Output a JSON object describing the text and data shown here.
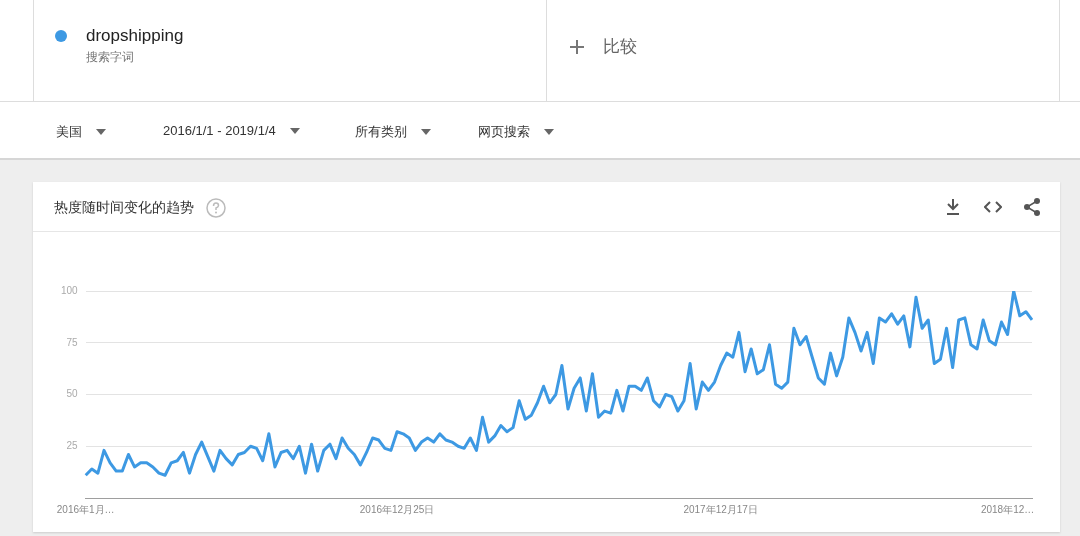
{
  "chart_data": {
    "type": "line",
    "title": "热度随时间变化的趋势",
    "annotations": [
      "搜索字词",
      "比较",
      "美国",
      "2016/1/1 - 2019/1/4",
      "所有类别",
      "网页搜索"
    ],
    "categories": [
      "2016年1月…",
      null,
      null,
      null,
      null,
      null,
      null,
      null,
      null,
      null,
      null,
      null,
      null,
      null,
      null,
      null,
      null,
      null,
      null,
      null,
      null,
      null,
      null,
      null,
      null,
      null,
      null,
      null,
      null,
      null,
      null,
      null,
      null,
      null,
      null,
      null,
      null,
      null,
      null,
      null,
      null,
      null,
      null,
      null,
      null,
      null,
      null,
      null,
      null,
      null,
      null,
      "2016年12月25日",
      null,
      null,
      null,
      null,
      null,
      null,
      null,
      null,
      null,
      null,
      null,
      null,
      null,
      null,
      null,
      null,
      null,
      null,
      null,
      null,
      null,
      null,
      null,
      null,
      null,
      null,
      null,
      null,
      null,
      null,
      null,
      null,
      null,
      null,
      null,
      null,
      null,
      null,
      null,
      null,
      null,
      null,
      null,
      null,
      null,
      null,
      null,
      null,
      null,
      null,
      null,
      null,
      "2017年12月17日",
      null,
      null,
      null,
      null,
      null,
      null,
      null,
      null,
      null,
      null,
      null,
      null,
      null,
      null,
      null,
      null,
      null,
      null,
      null,
      null,
      null,
      null,
      null,
      null,
      null,
      null,
      null,
      null,
      null,
      null,
      null,
      null,
      null,
      null,
      null,
      null,
      null,
      null,
      null,
      null,
      null,
      null,
      null,
      null,
      null,
      null,
      "2018年12…",
      null,
      null,
      null,
      null
    ],
    "series": [
      {
        "name": "dropshipping",
        "color": "#3d99e3",
        "values": [
          11,
          14,
          12,
          23,
          17,
          13,
          13,
          21,
          15,
          17,
          17,
          15,
          12,
          11,
          17,
          18,
          22,
          12,
          21,
          27,
          20,
          13,
          23,
          19,
          16,
          21,
          22,
          25,
          24,
          18,
          31,
          15,
          22,
          23,
          19,
          25,
          12,
          26,
          13,
          23,
          26,
          19,
          29,
          24,
          21,
          16,
          22,
          29,
          28,
          24,
          23,
          32,
          31,
          29,
          23,
          27,
          29,
          27,
          31,
          28,
          27,
          25,
          24,
          29,
          23,
          39,
          27,
          30,
          35,
          32,
          34,
          47,
          38,
          40,
          46,
          54,
          46,
          50,
          64,
          43,
          53,
          58,
          42,
          60,
          39,
          42,
          41,
          52,
          42,
          54,
          54,
          52,
          58,
          47,
          44,
          50,
          49,
          42,
          47,
          65,
          43,
          56,
          52,
          56,
          64,
          70,
          68,
          80,
          61,
          72,
          60,
          62,
          74,
          55,
          53,
          56,
          82,
          74,
          78,
          68,
          58,
          55,
          70,
          59,
          68,
          87,
          80,
          71,
          80,
          65,
          87,
          85,
          89,
          84,
          88,
          73,
          97,
          82,
          86,
          65,
          67,
          82,
          63,
          86,
          87,
          74,
          72,
          86,
          76,
          74,
          85,
          79,
          100,
          88,
          90,
          86
        ]
      }
    ],
    "ylim": [
      0,
      100
    ],
    "yticks": [
      25,
      50,
      75,
      100
    ],
    "grid": "y",
    "legend": "top left",
    "marker": "none",
    "line_style": "solid"
  }
}
